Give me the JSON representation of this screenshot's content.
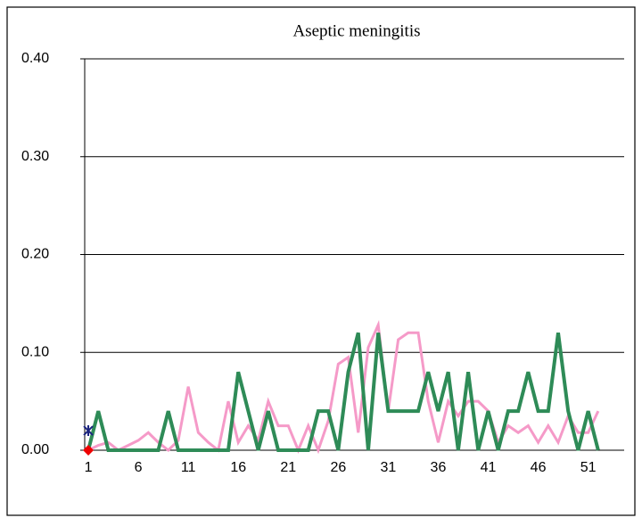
{
  "chart_data": {
    "type": "line",
    "title": "Aseptic meningitis",
    "x": [
      1,
      2,
      3,
      4,
      5,
      6,
      7,
      8,
      9,
      10,
      11,
      12,
      13,
      14,
      15,
      16,
      17,
      18,
      19,
      20,
      21,
      22,
      23,
      24,
      25,
      26,
      27,
      28,
      29,
      30,
      31,
      32,
      33,
      34,
      35,
      36,
      37,
      38,
      39,
      40,
      41,
      42,
      43,
      44,
      45,
      46,
      47,
      48,
      49,
      50,
      51,
      52
    ],
    "xlim": [
      0.64,
      54.6
    ],
    "xticks": [
      1,
      6,
      11,
      16,
      21,
      26,
      31,
      36,
      41,
      46,
      51
    ],
    "ylim": [
      0,
      0.4
    ],
    "yticks": [
      {
        "value": 0,
        "label": "0.00"
      },
      {
        "value": 0.1,
        "label": "0.10"
      },
      {
        "value": 0.2,
        "label": "0.20"
      },
      {
        "value": 0.3,
        "label": "0.30"
      },
      {
        "value": 0.4,
        "label": "0.40"
      }
    ],
    "grid": true,
    "series": [
      {
        "color": "#f59ac8",
        "values": [
          0,
          0.005,
          0.008,
          0,
          0.005,
          0.01,
          0.018,
          0.008,
          0,
          0.01,
          0.065,
          0.018,
          0.008,
          0,
          0.05,
          0.008,
          0.025,
          0.01,
          0.05,
          0.025,
          0.025,
          0,
          0.025,
          0,
          0.03,
          0.088,
          0.095,
          0.018,
          0.105,
          0.128,
          0.04,
          0.113,
          0.12,
          0.12,
          0.05,
          0.008,
          0.05,
          0.035,
          0.05,
          0.05,
          0.04,
          0.008,
          0.025,
          0.018,
          0.025,
          0.008,
          0.025,
          0.008,
          0.035,
          0.018,
          0.018,
          0.04
        ]
      },
      {
        "color": "#2e8b57",
        "values": [
          0,
          0.04,
          0,
          0,
          0,
          0,
          0,
          0,
          0.04,
          0,
          0,
          0,
          0,
          0,
          0,
          0.08,
          0.04,
          0,
          0.04,
          0,
          0,
          0,
          0,
          0.04,
          0.04,
          0,
          0.08,
          0.12,
          0,
          0.12,
          0.04,
          0.04,
          0.04,
          0.04,
          0.08,
          0.04,
          0.08,
          0,
          0.08,
          0,
          0.04,
          0,
          0.04,
          0.04,
          0.08,
          0.04,
          0.04,
          0.12,
          0.04,
          0,
          0.04,
          0
        ]
      },
      {
        "color": "#1a237e",
        "marker": "asterisk",
        "x": [
          1
        ],
        "values": [
          0.02
        ]
      },
      {
        "color": "#ee0000",
        "marker": "diamond",
        "x": [
          1
        ],
        "values": [
          0
        ]
      }
    ]
  }
}
